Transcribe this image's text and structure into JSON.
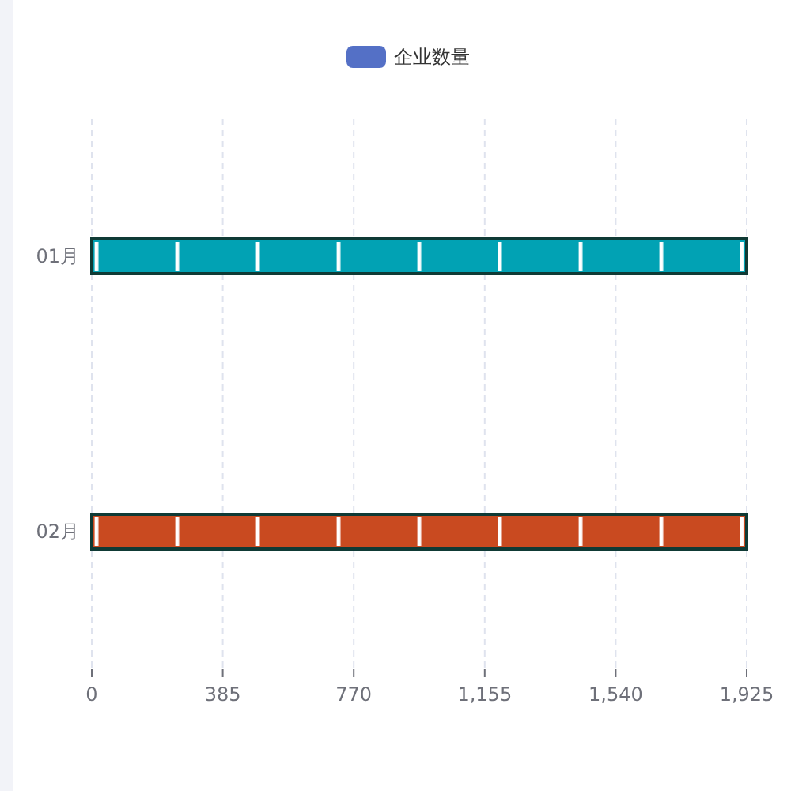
{
  "chart_data": {
    "type": "bar",
    "orientation": "horizontal",
    "categories": [
      "01月",
      "02月"
    ],
    "series": [
      {
        "name": "企业数量",
        "color": "#5470c6",
        "colors": [
          "#01a2b4",
          "#c94a20"
        ],
        "values": [
          1925,
          1925
        ]
      }
    ],
    "xlim": [
      0,
      1925
    ],
    "xticks": [
      0,
      {
        "value": 385,
        "label": "385"
      },
      {
        "value": 770,
        "label": "770"
      },
      {
        "value": 1155,
        "label": "1,155"
      },
      {
        "value": 1540,
        "label": "1,540"
      },
      {
        "value": 1925,
        "label": "1,925"
      }
    ],
    "grid": "x",
    "legend": "top"
  }
}
